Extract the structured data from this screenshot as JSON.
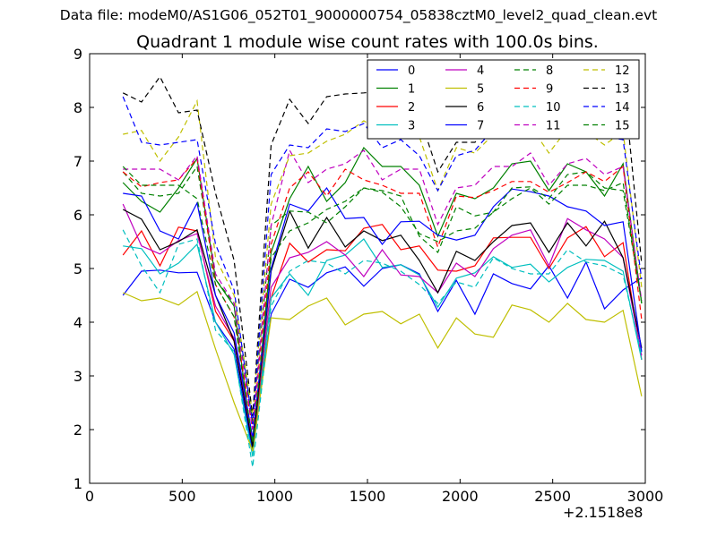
{
  "file_title": "Data file: modeM0/AS1G06_052T01_9000000754_05838cztM0_level2_quad_clean.evt",
  "chart_data": {
    "type": "line",
    "title": "Quadrant 1 module wise count rates with 100.0s bins.",
    "xlabel": "",
    "ylabel": "",
    "x_offset_label": "+2.1518e8",
    "xlim": [
      0,
      3000
    ],
    "ylim": [
      1,
      9
    ],
    "xticks": [
      0,
      500,
      1000,
      1500,
      2000,
      2500,
      3000
    ],
    "yticks": [
      1,
      2,
      3,
      4,
      5,
      6,
      7,
      8,
      9
    ],
    "grid": false,
    "legend_position": "top-right",
    "legend_columns": 4,
    "x": [
      180,
      280,
      380,
      480,
      580,
      680,
      780,
      880,
      980,
      1080,
      1180,
      1280,
      1380,
      1480,
      1580,
      1680,
      1780,
      1880,
      1980,
      2080,
      2180,
      2280,
      2380,
      2480,
      2580,
      2680,
      2780,
      2880,
      2980
    ],
    "series": [
      {
        "name": "0",
        "color": "#0000ff",
        "dash": false,
        "values": [
          4.5,
          4.95,
          4.97,
          4.92,
          4.93,
          4.0,
          3.5,
          1.6,
          4.15,
          4.8,
          4.65,
          4.92,
          5.03,
          4.67,
          5.0,
          5.07,
          4.9,
          4.2,
          4.78,
          4.15,
          4.9,
          4.72,
          4.62,
          5.05,
          4.45,
          5.12,
          4.25,
          4.6,
          4.83
        ]
      },
      {
        "name": "1",
        "color": "#008000",
        "dash": false,
        "values": [
          6.6,
          6.25,
          6.05,
          6.5,
          7.05,
          4.8,
          4.3,
          1.65,
          5.3,
          6.3,
          6.9,
          6.25,
          6.6,
          7.25,
          6.9,
          6.9,
          6.55,
          5.6,
          6.4,
          6.3,
          6.5,
          6.95,
          7.0,
          6.45,
          6.95,
          6.8,
          6.35,
          6.95,
          4.35
        ]
      },
      {
        "name": "2",
        "color": "#ff0000",
        "dash": false,
        "values": [
          5.25,
          5.7,
          5.05,
          5.77,
          5.7,
          4.2,
          3.65,
          1.7,
          4.45,
          5.47,
          5.12,
          5.35,
          5.33,
          5.75,
          5.82,
          5.35,
          5.42,
          4.97,
          4.95,
          5.05,
          5.57,
          5.58,
          5.58,
          5.0,
          5.57,
          5.78,
          5.22,
          5.48,
          3.3
        ]
      },
      {
        "name": "3",
        "color": "#00bfbf",
        "dash": false,
        "values": [
          5.42,
          5.37,
          4.9,
          5.1,
          5.45,
          4.0,
          3.4,
          1.5,
          4.45,
          4.9,
          4.5,
          5.15,
          5.25,
          5.55,
          5.02,
          5.07,
          4.88,
          4.28,
          4.82,
          4.92,
          5.22,
          5.02,
          5.08,
          4.75,
          5.02,
          5.17,
          5.15,
          4.95,
          3.3
        ]
      },
      {
        "name": "4",
        "color": "#bf00bf",
        "dash": false,
        "values": [
          6.2,
          5.42,
          5.27,
          5.52,
          5.65,
          4.3,
          3.7,
          1.8,
          4.65,
          5.2,
          5.3,
          5.5,
          5.25,
          4.85,
          5.35,
          4.88,
          4.85,
          4.55,
          5.1,
          4.85,
          5.37,
          5.62,
          5.72,
          5.05,
          5.93,
          5.72,
          5.55,
          5.2,
          3.38
        ]
      },
      {
        "name": "5",
        "color": "#bfbf00",
        "dash": false,
        "values": [
          4.55,
          4.4,
          4.45,
          4.32,
          4.57,
          3.5,
          2.5,
          1.6,
          4.08,
          4.05,
          4.3,
          4.45,
          3.95,
          4.15,
          4.2,
          3.97,
          4.15,
          3.52,
          4.08,
          3.78,
          3.72,
          4.32,
          4.23,
          4.0,
          4.35,
          4.05,
          4.0,
          4.22,
          2.62
        ]
      },
      {
        "name": "6",
        "color": "#000000",
        "dash": false,
        "values": [
          6.1,
          5.92,
          5.35,
          5.5,
          5.72,
          4.5,
          3.65,
          1.68,
          4.95,
          6.07,
          5.38,
          5.95,
          5.4,
          5.7,
          5.52,
          5.62,
          5.15,
          4.55,
          5.32,
          5.15,
          5.5,
          5.8,
          5.85,
          5.3,
          5.85,
          5.42,
          5.88,
          5.2,
          3.52
        ]
      },
      {
        "name": "7",
        "color": "#0000ff",
        "dash": false,
        "values": [
          6.4,
          6.35,
          5.7,
          5.55,
          6.22,
          4.5,
          3.8,
          1.85,
          5.0,
          6.2,
          6.07,
          6.5,
          5.93,
          5.95,
          5.45,
          5.87,
          5.88,
          5.62,
          5.53,
          5.62,
          6.15,
          6.48,
          6.43,
          6.35,
          6.15,
          6.07,
          5.8,
          5.87,
          3.45
        ]
      },
      {
        "name": "8",
        "color": "#008000",
        "dash": true,
        "values": [
          6.8,
          6.4,
          6.35,
          6.4,
          6.9,
          4.8,
          4.35,
          2.15,
          5.8,
          6.07,
          6.05,
          5.85,
          6.15,
          6.5,
          6.45,
          6.35,
          5.6,
          5.3,
          6.15,
          5.98,
          6.05,
          6.5,
          6.52,
          6.3,
          6.75,
          6.8,
          6.5,
          6.45,
          4.38
        ]
      },
      {
        "name": "9",
        "color": "#ff0000",
        "dash": true,
        "values": [
          6.8,
          6.52,
          6.6,
          6.65,
          7.05,
          4.7,
          4.1,
          2.0,
          5.45,
          6.5,
          6.8,
          6.35,
          6.85,
          6.65,
          6.55,
          6.4,
          6.4,
          5.4,
          6.35,
          6.32,
          6.45,
          6.62,
          6.62,
          6.42,
          6.6,
          6.8,
          6.62,
          6.9,
          4.05
        ]
      },
      {
        "name": "10",
        "color": "#00bfbf",
        "dash": true,
        "values": [
          5.72,
          5.05,
          4.55,
          5.45,
          5.55,
          3.85,
          3.45,
          1.3,
          4.3,
          4.95,
          5.15,
          5.1,
          4.9,
          5.15,
          5.1,
          4.95,
          4.7,
          4.35,
          4.75,
          4.65,
          5.2,
          5.0,
          4.9,
          4.9,
          5.35,
          5.12,
          5.05,
          4.88,
          3.38
        ]
      },
      {
        "name": "11",
        "color": "#bf00bf",
        "dash": true,
        "values": [
          6.85,
          6.85,
          6.85,
          6.65,
          7.1,
          4.9,
          4.35,
          2.0,
          5.8,
          7.2,
          6.6,
          6.85,
          6.95,
          7.2,
          6.65,
          6.85,
          6.85,
          5.82,
          6.5,
          6.55,
          6.9,
          6.9,
          7.15,
          6.55,
          6.95,
          7.05,
          6.75,
          6.9,
          4.4
        ]
      },
      {
        "name": "12",
        "color": "#bfbf00",
        "dash": true,
        "values": [
          7.5,
          7.57,
          7.0,
          7.45,
          8.12,
          5.2,
          4.5,
          2.3,
          6.2,
          7.1,
          7.15,
          7.37,
          7.5,
          7.75,
          7.55,
          7.57,
          7.45,
          6.45,
          7.25,
          7.15,
          7.5,
          7.55,
          7.65,
          7.15,
          7.6,
          7.55,
          7.3,
          7.55,
          4.65
        ]
      },
      {
        "name": "13",
        "color": "#000000",
        "dash": true,
        "values": [
          8.27,
          8.1,
          8.57,
          7.9,
          7.95,
          6.4,
          5.15,
          2.25,
          7.3,
          8.15,
          7.7,
          8.2,
          8.25,
          8.27,
          8.3,
          8.3,
          7.85,
          6.8,
          7.35,
          7.35,
          7.7,
          8.05,
          8.2,
          8.05,
          8.3,
          8.4,
          8.25,
          8.6,
          5.1
        ]
      },
      {
        "name": "14",
        "color": "#0000ff",
        "dash": true,
        "values": [
          8.2,
          7.35,
          7.3,
          7.35,
          7.4,
          5.45,
          4.6,
          2.1,
          6.75,
          7.3,
          7.25,
          7.6,
          7.55,
          7.7,
          7.25,
          7.4,
          7.1,
          6.45,
          7.1,
          7.2,
          7.6,
          7.6,
          7.65,
          7.5,
          7.55,
          7.7,
          7.45,
          7.4,
          4.8
        ]
      },
      {
        "name": "15",
        "color": "#008000",
        "dash": true,
        "values": [
          6.9,
          6.55,
          6.55,
          6.55,
          6.3,
          4.7,
          4.1,
          1.75,
          5.2,
          5.7,
          5.85,
          6.1,
          6.25,
          6.5,
          6.42,
          6.15,
          5.65,
          5.5,
          5.7,
          5.75,
          6.05,
          6.3,
          6.5,
          6.2,
          6.55,
          6.55,
          6.45,
          6.6,
          4.35
        ]
      }
    ]
  }
}
